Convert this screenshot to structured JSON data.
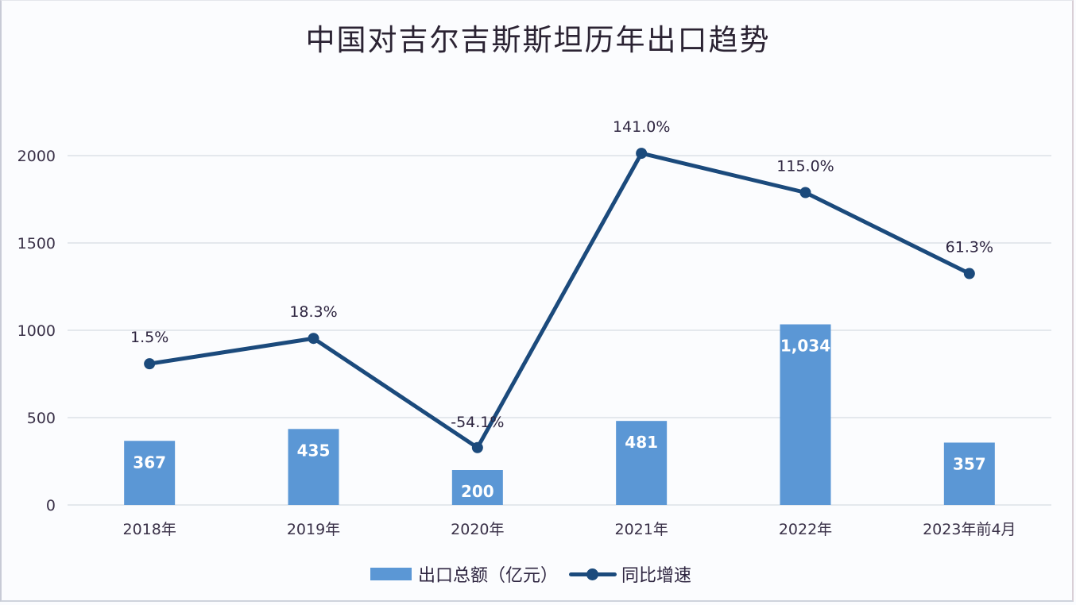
{
  "chart_data": {
    "type": "bar+line",
    "title": "中国对吉尔吉斯斯坦历年出口趋势",
    "categories": [
      "2018年",
      "2019年",
      "2020年",
      "2021年",
      "2022年",
      "2023年前4月"
    ],
    "series": [
      {
        "name": "出口总额（亿元）",
        "type": "bar",
        "color": "#5b97d5",
        "values": [
          367,
          435,
          200,
          481,
          1034,
          357
        ],
        "labels": [
          "367",
          "435",
          "200",
          "481",
          "1,034",
          "357"
        ]
      },
      {
        "name": "同比增速",
        "type": "line",
        "color": "#1b4a7c",
        "values": [
          1.5,
          18.3,
          -54.1,
          141.0,
          115.0,
          61.3
        ],
        "labels": [
          "1.5%",
          "18.3%",
          "-54.1%",
          "141.0%",
          "115.0%",
          "61.3%"
        ],
        "axis": "secondary (hidden)"
      }
    ],
    "xlabel": "",
    "ylabel": "",
    "ylim": [
      0,
      2000
    ],
    "yticks": [
      "0",
      "500",
      "1000",
      "1500",
      "2000"
    ],
    "grid": true,
    "legend_position": "bottom"
  }
}
